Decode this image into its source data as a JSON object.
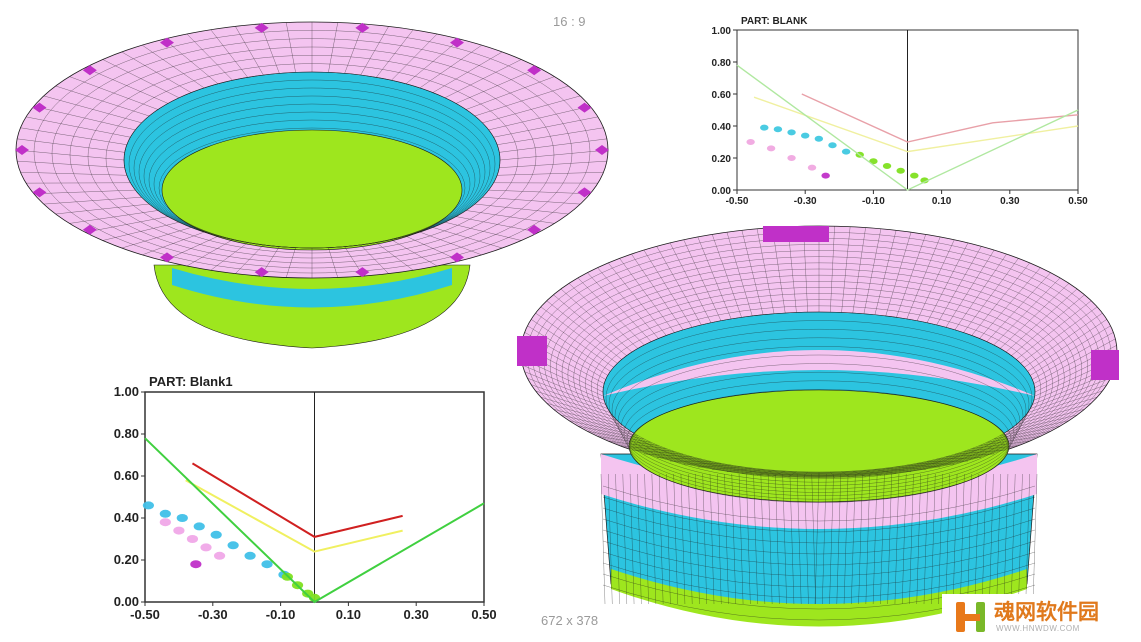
{
  "overlay": {
    "aspect_label": "16 : 9",
    "dimension_label": "672 x 378"
  },
  "watermark": {
    "title": "魂网软件园",
    "subtitle": "WWW.HNWDW.COM",
    "colors": {
      "orange": "#e8791a",
      "green": "#7ab829"
    }
  },
  "mesh_colors": {
    "flange": "#f4c4f0",
    "wall": "#2cc4e0",
    "bottom": "#9ee61e",
    "hot": "#c030c8",
    "line": "#1a1a1a"
  },
  "chart_data": [
    {
      "type": "line",
      "title": "PART: BLANK",
      "xlim": [
        -0.5,
        0.5
      ],
      "ylim": [
        0.0,
        1.0
      ],
      "xticks": [
        "-0.50",
        "-0.30",
        "-0.10",
        "0.10",
        "0.30",
        "0.50"
      ],
      "yticks": [
        "0.00",
        "0.20",
        "0.40",
        "0.60",
        "0.80",
        "1.00"
      ],
      "grid": false,
      "series": [
        {
          "color": "#e8a0a8",
          "x": [
            -0.31,
            0.0,
            0.25,
            0.5
          ],
          "y": [
            0.6,
            0.3,
            0.42,
            0.47
          ]
        },
        {
          "color": "#f0f0a0",
          "x": [
            -0.45,
            0.0,
            0.5
          ],
          "y": [
            0.58,
            0.24,
            0.4
          ]
        },
        {
          "color": "#b0e8a0",
          "x": [
            -0.5,
            0.0,
            0.5
          ],
          "y": [
            0.78,
            0.0,
            0.5
          ]
        }
      ],
      "scatter": [
        {
          "color": "#40c8e0",
          "x": [
            -0.42,
            -0.38,
            -0.34,
            -0.3,
            -0.26,
            -0.22,
            -0.18
          ],
          "y": [
            0.39,
            0.38,
            0.36,
            0.34,
            0.32,
            0.28,
            0.24
          ]
        },
        {
          "color": "#80e020",
          "x": [
            -0.14,
            -0.1,
            -0.06,
            -0.02,
            0.02,
            0.05
          ],
          "y": [
            0.22,
            0.18,
            0.15,
            0.12,
            0.09,
            0.06
          ]
        },
        {
          "color": "#f0a8e0",
          "x": [
            -0.46,
            -0.4,
            -0.34,
            -0.28
          ],
          "y": [
            0.3,
            0.26,
            0.2,
            0.14
          ]
        },
        {
          "color": "#c030c8",
          "x": [
            -0.24
          ],
          "y": [
            0.09
          ]
        }
      ]
    },
    {
      "type": "line",
      "title": "PART: Blank1",
      "xlim": [
        -0.5,
        0.5
      ],
      "ylim": [
        0.0,
        1.0
      ],
      "xticks": [
        "-0.50",
        "-0.30",
        "-0.10",
        "0.10",
        "0.30",
        "0.50"
      ],
      "yticks": [
        "0.00",
        "0.20",
        "0.40",
        "0.60",
        "0.80",
        "1.00"
      ],
      "grid": false,
      "series": [
        {
          "color": "#d02020",
          "x": [
            -0.36,
            0.0,
            0.26
          ],
          "y": [
            0.66,
            0.31,
            0.41
          ]
        },
        {
          "color": "#f0f060",
          "x": [
            -0.38,
            0.0,
            0.26
          ],
          "y": [
            0.58,
            0.24,
            0.34
          ]
        },
        {
          "color": "#40d040",
          "x": [
            -0.5,
            0.0,
            0.5
          ],
          "y": [
            0.78,
            0.0,
            0.47
          ]
        }
      ],
      "scatter": [
        {
          "color": "#40c0e8",
          "x": [
            -0.49,
            -0.44,
            -0.39,
            -0.34,
            -0.29,
            -0.24,
            -0.19,
            -0.14,
            -0.09
          ],
          "y": [
            0.46,
            0.42,
            0.4,
            0.36,
            0.32,
            0.27,
            0.22,
            0.18,
            0.13
          ]
        },
        {
          "color": "#f0a8e8",
          "x": [
            -0.44,
            -0.4,
            -0.36,
            -0.32,
            -0.28
          ],
          "y": [
            0.38,
            0.34,
            0.3,
            0.26,
            0.22
          ]
        },
        {
          "color": "#80e020",
          "x": [
            -0.08,
            -0.05,
            -0.02,
            0.0
          ],
          "y": [
            0.12,
            0.08,
            0.04,
            0.02
          ]
        },
        {
          "color": "#c030c8",
          "x": [
            -0.35
          ],
          "y": [
            0.18
          ]
        }
      ]
    }
  ]
}
